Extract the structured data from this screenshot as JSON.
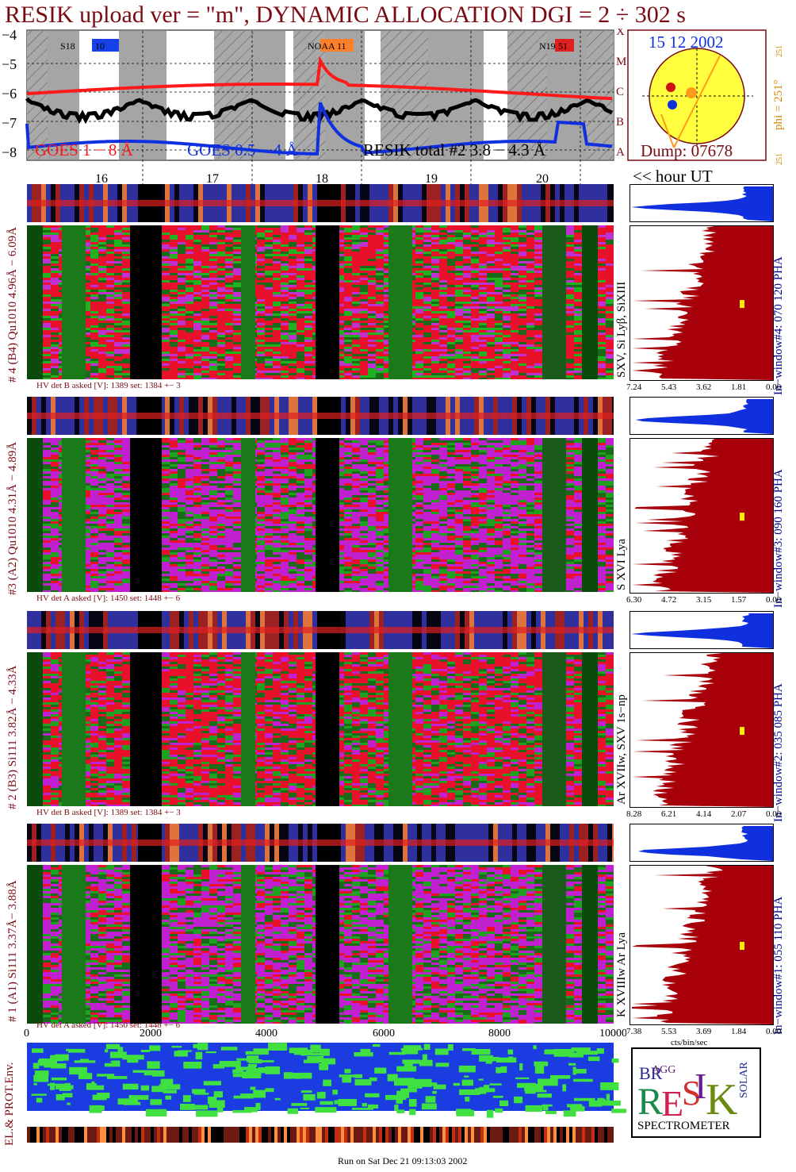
{
  "title": "RESIK upload ver = \"m\", DYNAMIC ALLOCATION  DGI =   2 ÷ 302 s",
  "goes": {
    "y_ticks": [
      "−4",
      "−5",
      "−6",
      "−7",
      "−8"
    ],
    "class_letters": [
      "X",
      "M",
      "C",
      "B",
      "A"
    ],
    "legend_goes_long": "GOES 1 − 8 Å",
    "legend_goes_short": "GOES 0.5 − 4 Å",
    "legend_resik": "RESIK total #2  3.8 − 4.3 Å",
    "noaa_labels": [
      "S18",
      "10",
      "NOAA 11",
      "N19",
      "51"
    ],
    "hour_labels": [
      "16",
      "17",
      "18",
      "19",
      "20"
    ],
    "hour_ut_label": "<< hour UT"
  },
  "sun": {
    "date": "15 12 2002",
    "dump": "Dump: 07678",
    "phi_label": "phi = 251°",
    "phi_small_top": "251",
    "phi_small_bottom": "251"
  },
  "panels": [
    {
      "label": "# 4 (B4) Qu1010 4.96Å − 6.09Å",
      "lines": "SXV, Si Lyβ, SiXIII",
      "window": "In−window#4:  070 120 PHA",
      "hv": "HV det B asked [V]:  1389 set:  1384  +−    3",
      "x_ticks": [
        "7.24",
        "5.43",
        "3.62",
        "1.81",
        "0.00"
      ]
    },
    {
      "label": "#3 (A2) Qu1010  4.31Å − 4.89Å",
      "lines": "S XVI Lya",
      "window": "In−window#3:  090 160 PHA",
      "hv": "HV det A asked [V]:  1450 set:  1448  +−    6",
      "x_ticks": [
        "6.30",
        "4.72",
        "3.15",
        "1.57",
        "0.00"
      ]
    },
    {
      "label": "# 2 (B3) Si111  3.82Å − 4.33Å",
      "lines": "Ar XVIIw,  SXV 1s−np",
      "window": "In−window#2:  035 085 PHA",
      "hv": "HV det B asked [V]:  1389 set:  1384  +−    3",
      "x_ticks": [
        "8.28",
        "6.21",
        "4.14",
        "2.07",
        "0.00"
      ]
    },
    {
      "label": "# 1 (A1) Si111  3.37Å− 3.88Å",
      "lines": "K XVIIIw  Ar Lya",
      "window": "In−window#1:  055 110 PHA",
      "hv": "HV det A asked [V]:  1450 set:  1448  +−    6",
      "x_ticks": [
        "7.38",
        "5.53",
        "3.69",
        "1.84",
        "0.00"
      ],
      "x_unit": "cts/bin/sec"
    }
  ],
  "orbit": {
    "x_ticks": [
      "0",
      "2000",
      "4000",
      "6000",
      "8000",
      "10000"
    ],
    "label": "EL.& PROT.Env."
  },
  "logo": {
    "letters": "RESIK",
    "bragg": "BRAGG",
    "solar": "SOLAR",
    "spectrometer": "SPECTROMETER"
  },
  "footer": "Run on Sat Dec 21 09:13:03 2002"
}
